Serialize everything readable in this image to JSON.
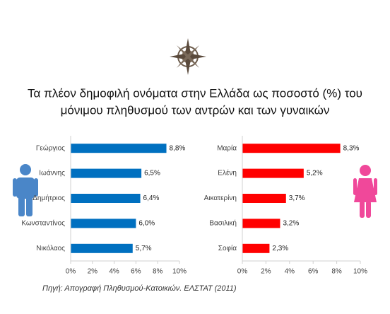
{
  "title": [
    "Τα πλέον δημοφιλή ονόματα στην Ελλάδα ως ποσοστό (%) του",
    "μόνιμου πληθυσμού των αντρών και των γυναικών"
  ],
  "source": "Πηγή: Απογραφή Πληθυσμού-Κατοικιών. ΕΛΣΤΑΤ (2011)",
  "chart_data": [
    {
      "type": "bar",
      "orientation": "horizontal",
      "color": "#0070c0",
      "categories": [
        "Γεώργιος",
        "Ιωάννης",
        "Δημήτριος",
        "Κωνσταντίνος",
        "Νικόλαος"
      ],
      "values": [
        8.8,
        6.5,
        6.4,
        6.0,
        5.7
      ],
      "value_labels": [
        "8,8%",
        "6,5%",
        "6,4%",
        "6,0%",
        "5,7%"
      ],
      "xlim": [
        0,
        10
      ],
      "xticks": [
        {
          "value": 0,
          "label": "0%"
        },
        {
          "value": 2,
          "label": "2%"
        },
        {
          "value": 4,
          "label": "4%"
        },
        {
          "value": 6,
          "label": "6%"
        },
        {
          "value": 8,
          "label": "8%"
        },
        {
          "value": 10,
          "label": "10%"
        }
      ]
    },
    {
      "type": "bar",
      "orientation": "horizontal",
      "color": "#ff0000",
      "categories": [
        "Μαρία",
        "Ελένη",
        "Αικατερίνη",
        "Βασιλική",
        "Σοφία"
      ],
      "values": [
        8.3,
        5.2,
        3.7,
        3.2,
        2.3
      ],
      "value_labels": [
        "8,3%",
        "5,2%",
        "3,7%",
        "3,2%",
        "2,3%"
      ],
      "xlim": [
        0,
        10
      ],
      "xticks": [
        {
          "value": 0,
          "label": "0%"
        },
        {
          "value": 2,
          "label": "2%"
        },
        {
          "value": 4,
          "label": "4%"
        },
        {
          "value": 6,
          "label": "6%"
        },
        {
          "value": 8,
          "label": "8%"
        },
        {
          "value": 10,
          "label": "10%"
        }
      ]
    }
  ]
}
